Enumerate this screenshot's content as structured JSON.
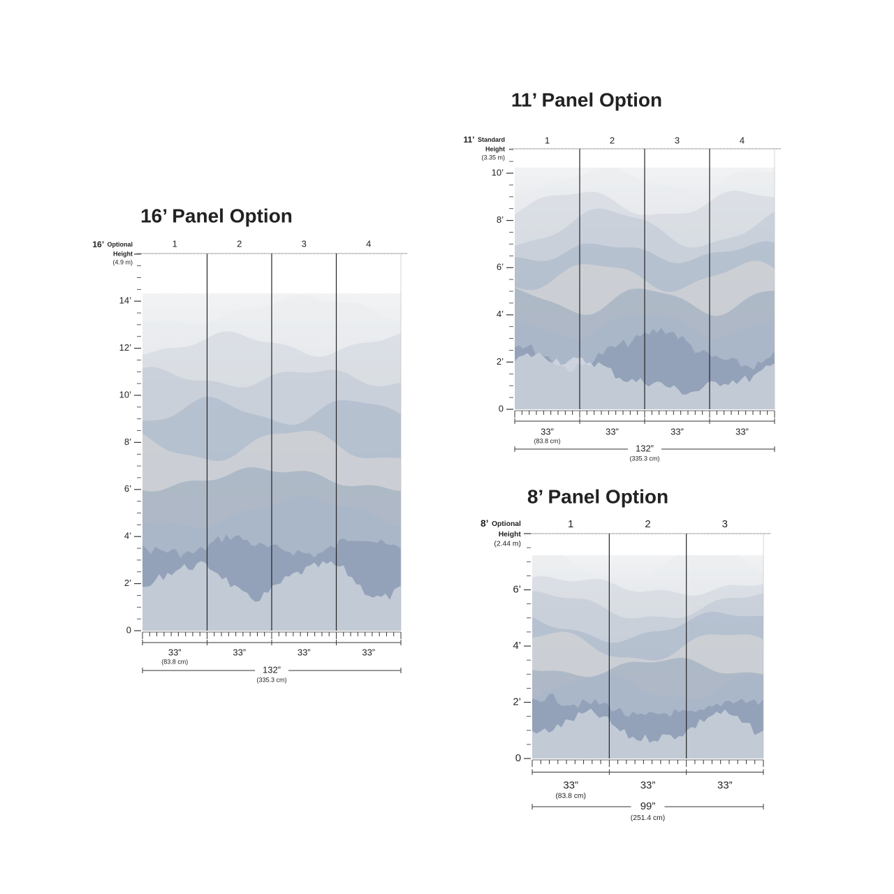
{
  "panels": [
    {
      "title": "16’ Panel Option",
      "height_label": {
        "size": "16’",
        "kind": "Optional",
        "word": "Height",
        "metric": "(4.9 m)"
      },
      "panel_numbers": [
        "1",
        "2",
        "3",
        "4"
      ],
      "y_labels": [
        "0",
        "2’",
        "4’",
        "6’",
        "8’",
        "10’",
        "12’",
        "14’"
      ],
      "panel_widths": [
        "33”",
        "33”",
        "33”",
        "33”"
      ],
      "panel_width_metric": "(83.8 cm)",
      "total_width": "132”",
      "total_metric": "(335.3 cm)"
    },
    {
      "title": "11’ Panel Option",
      "height_label": {
        "size": "11’",
        "kind": "Standard",
        "word": "Height",
        "metric": "(3.35 m)"
      },
      "panel_numbers": [
        "1",
        "2",
        "3",
        "4"
      ],
      "y_labels": [
        "0",
        "2’",
        "4’",
        "6’",
        "8’",
        "10’"
      ],
      "panel_widths": [
        "33”",
        "33”",
        "33”",
        "33”"
      ],
      "panel_width_metric": "(83.8 cm)",
      "total_width": "132”",
      "total_metric": "(335.3 cm)"
    },
    {
      "title": "8’ Panel Option",
      "height_label": {
        "size": "8’",
        "kind": "Optional",
        "word": "Height",
        "metric": "(2.44 m)"
      },
      "panel_numbers": [
        "1",
        "2",
        "3"
      ],
      "y_labels": [
        "0",
        "2’",
        "4’",
        "6’"
      ],
      "panel_widths": [
        "33”",
        "33”",
        "33”"
      ],
      "panel_width_metric": "(83.8 cm)",
      "total_width": "99”",
      "total_metric": "(251.4 cm)"
    }
  ]
}
